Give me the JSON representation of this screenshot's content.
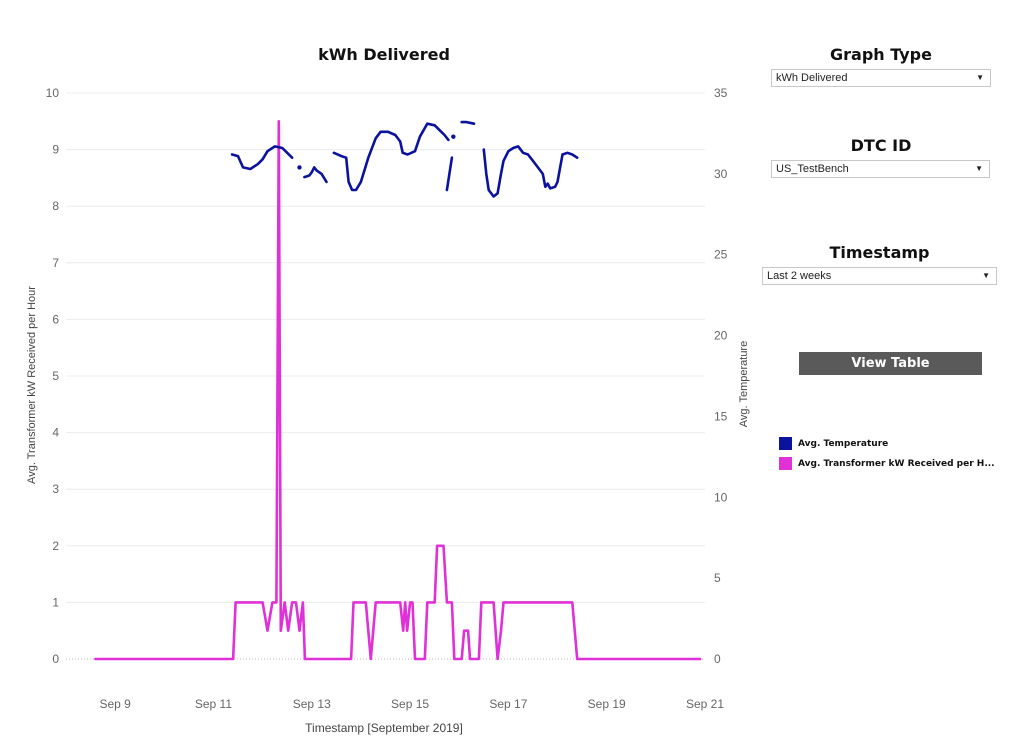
{
  "chart_data": {
    "type": "line",
    "title": "kWh Delivered",
    "xlabel": "Timestamp [September 2019]",
    "ylabel_left": "Avg. Transformer kW Received per Hour",
    "ylabel_right": "Avg. Temperature",
    "x_ticks": [
      {
        "day": 9,
        "label": "Sep 9"
      },
      {
        "day": 11,
        "label": "Sep 11"
      },
      {
        "day": 13,
        "label": "Sep 13"
      },
      {
        "day": 15,
        "label": "Sep 15"
      },
      {
        "day": 17,
        "label": "Sep 17"
      },
      {
        "day": 19,
        "label": "Sep 19"
      },
      {
        "day": 21,
        "label": "Sep 21"
      }
    ],
    "xlim": [
      8.0,
      21.0
    ],
    "ylim_left": [
      0,
      10
    ],
    "ylim_right": [
      0,
      35
    ],
    "y_ticks_left": [
      "0",
      "1",
      "2",
      "3",
      "4",
      "5",
      "6",
      "7",
      "8",
      "9",
      "10"
    ],
    "y_ticks_right": [
      "0",
      "5",
      "10",
      "15",
      "20",
      "25",
      "30",
      "35"
    ],
    "grid": "horizontal",
    "series": [
      {
        "name": "Avg. Transformer kW Received per Hour",
        "axis": "left",
        "color": "#e030d8",
        "segments": [
          [
            [
              8.6,
              0
            ],
            [
              11.4,
              0
            ],
            [
              11.45,
              1
            ],
            [
              12.0,
              1
            ],
            [
              12.1,
              0.5
            ],
            [
              12.2,
              1
            ],
            [
              12.28,
              1
            ],
            [
              12.33,
              9.5
            ],
            [
              12.37,
              0.5
            ],
            [
              12.45,
              1
            ],
            [
              12.52,
              0.5
            ],
            [
              12.6,
              1
            ],
            [
              12.68,
              1
            ],
            [
              12.75,
              0.5
            ],
            [
              12.82,
              1
            ],
            [
              12.86,
              0
            ],
            [
              13.05,
              0
            ],
            [
              13.2,
              0
            ],
            [
              13.8,
              0
            ],
            [
              13.85,
              1
            ],
            [
              14.1,
              1
            ],
            [
              14.2,
              0
            ],
            [
              14.3,
              1
            ],
            [
              14.8,
              1
            ],
            [
              14.86,
              0.5
            ],
            [
              14.9,
              1
            ],
            [
              14.94,
              0.5
            ],
            [
              15.0,
              1
            ],
            [
              15.05,
              1
            ],
            [
              15.1,
              0
            ],
            [
              15.3,
              0
            ],
            [
              15.35,
              1
            ],
            [
              15.5,
              1
            ],
            [
              15.55,
              2
            ],
            [
              15.68,
              2
            ],
            [
              15.75,
              1
            ],
            [
              15.85,
              1
            ],
            [
              15.9,
              0
            ],
            [
              16.05,
              0
            ],
            [
              16.1,
              0.5
            ],
            [
              16.18,
              0.5
            ],
            [
              16.22,
              0
            ],
            [
              16.4,
              0
            ],
            [
              16.45,
              1
            ],
            [
              16.7,
              1
            ],
            [
              16.78,
              0
            ],
            [
              16.85,
              0.5
            ],
            [
              16.9,
              1
            ],
            [
              18.3,
              1
            ],
            [
              18.4,
              0
            ],
            [
              20.9,
              0
            ]
          ]
        ]
      },
      {
        "name": "Avg. Temperature",
        "axis": "right",
        "color": "#0a129e",
        "segments": [
          [
            [
              11.38,
              31.2
            ],
            [
              11.5,
              31.1
            ],
            [
              11.6,
              30.4
            ],
            [
              11.75,
              30.3
            ],
            [
              11.9,
              30.6
            ],
            [
              12.0,
              30.9
            ],
            [
              12.1,
              31.4
            ],
            [
              12.25,
              31.7
            ],
            [
              12.4,
              31.6
            ],
            [
              12.5,
              31.3
            ],
            [
              12.6,
              31.0
            ]
          ],
          [
            [
              12.75,
              30.4
            ]
          ],
          [
            [
              12.85,
              29.8
            ],
            [
              12.95,
              29.9
            ],
            [
              13.0,
              30.1
            ],
            [
              13.05,
              30.4
            ],
            [
              13.1,
              30.2
            ],
            [
              13.2,
              30.0
            ],
            [
              13.3,
              29.5
            ]
          ],
          [
            [
              13.45,
              31.3
            ],
            [
              13.6,
              31.1
            ],
            [
              13.7,
              31.0
            ],
            [
              13.75,
              29.5
            ],
            [
              13.82,
              29.0
            ],
            [
              13.9,
              29.0
            ],
            [
              14.0,
              29.5
            ],
            [
              14.15,
              31.0
            ],
            [
              14.3,
              32.2
            ],
            [
              14.4,
              32.6
            ],
            [
              14.55,
              32.6
            ],
            [
              14.7,
              32.4
            ],
            [
              14.8,
              32.0
            ],
            [
              14.85,
              31.3
            ],
            [
              14.95,
              31.2
            ],
            [
              15.1,
              31.4
            ],
            [
              15.2,
              32.3
            ],
            [
              15.35,
              33.1
            ],
            [
              15.5,
              33.0
            ],
            [
              15.6,
              32.7
            ],
            [
              15.7,
              32.4
            ],
            [
              15.78,
              32.1
            ]
          ],
          [
            [
              15.88,
              32.3
            ]
          ],
          [
            [
              15.75,
              29.0
            ],
            [
              15.85,
              31.0
            ]
          ],
          [
            [
              16.05,
              33.2
            ],
            [
              16.15,
              33.2
            ],
            [
              16.3,
              33.1
            ]
          ],
          [
            [
              16.5,
              31.5
            ],
            [
              16.55,
              30.0
            ],
            [
              16.6,
              29.0
            ],
            [
              16.7,
              28.6
            ],
            [
              16.78,
              28.8
            ],
            [
              16.85,
              30.0
            ],
            [
              16.9,
              30.8
            ],
            [
              17.0,
              31.4
            ],
            [
              17.1,
              31.6
            ],
            [
              17.2,
              31.7
            ],
            [
              17.3,
              31.3
            ],
            [
              17.4,
              31.2
            ],
            [
              17.5,
              30.8
            ],
            [
              17.6,
              30.4
            ],
            [
              17.7,
              30.0
            ],
            [
              17.75,
              29.2
            ],
            [
              17.8,
              29.4
            ],
            [
              17.85,
              29.1
            ],
            [
              17.95,
              29.2
            ],
            [
              18.0,
              29.5
            ],
            [
              18.1,
              31.2
            ],
            [
              18.2,
              31.3
            ],
            [
              18.3,
              31.2
            ],
            [
              18.4,
              31.0
            ]
          ]
        ]
      }
    ]
  },
  "controls": {
    "graph_type": {
      "title": "Graph Type",
      "value": "kWh Delivered"
    },
    "dtc_id": {
      "title": "DTC ID",
      "value": "US_TestBench"
    },
    "timestamp": {
      "title": "Timestamp",
      "value": "Last 2 weeks"
    },
    "view_table_label": "View Table"
  },
  "legend": [
    {
      "label": "Avg. Temperature",
      "color": "#0a129e"
    },
    {
      "label": "Avg. Transformer kW Received per H...",
      "color": "#e030d8"
    }
  ]
}
